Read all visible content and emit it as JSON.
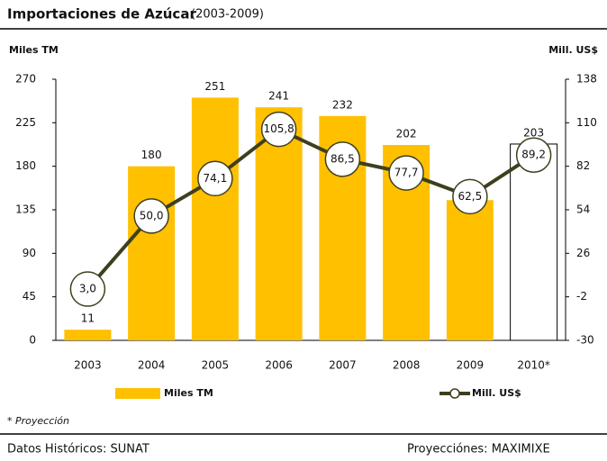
{
  "chart_data": {
    "type": "bar-line",
    "title": "Importaciones de Azúcar",
    "subtitle": "(2003-2009)",
    "y_label": "Miles TM",
    "y2_label": "Mill. US$",
    "categories": [
      "2003",
      "2004",
      "2005",
      "2006",
      "2007",
      "2008",
      "2009",
      "2010*"
    ],
    "series": [
      {
        "name": "Miles TM",
        "type": "bar",
        "color": "#FFC000",
        "colors": [
          "#FFC000",
          "#FFC000",
          "#FFC000",
          "#FFC000",
          "#FFC000",
          "#FFC000",
          "#FFC000",
          "#FFFFFF"
        ],
        "values": [
          11,
          180,
          251,
          241,
          232,
          202,
          145,
          203
        ]
      },
      {
        "name": "Mill. US$",
        "type": "line",
        "axis": "y2",
        "color": "#3f3f1f",
        "values": [
          3.0,
          50.0,
          74.1,
          105.8,
          86.5,
          77.7,
          62.5,
          89.2
        ],
        "value_labels": [
          "3,0",
          "50,0",
          "74,1",
          "105,8",
          "86,5",
          "77,7",
          "62,5",
          "89,2"
        ]
      }
    ],
    "ylim": [
      0,
      270
    ],
    "yticks": [
      0,
      45,
      90,
      135,
      180,
      225,
      270
    ],
    "y2lim": [
      -30,
      138
    ],
    "y2ticks": [
      -30,
      -2,
      26,
      54,
      82,
      110,
      138
    ],
    "footnote": "* Proyección",
    "source_left": "Datos Históricos: SUNAT",
    "source_right": "Proyecciónes: MAXIMIXE"
  }
}
